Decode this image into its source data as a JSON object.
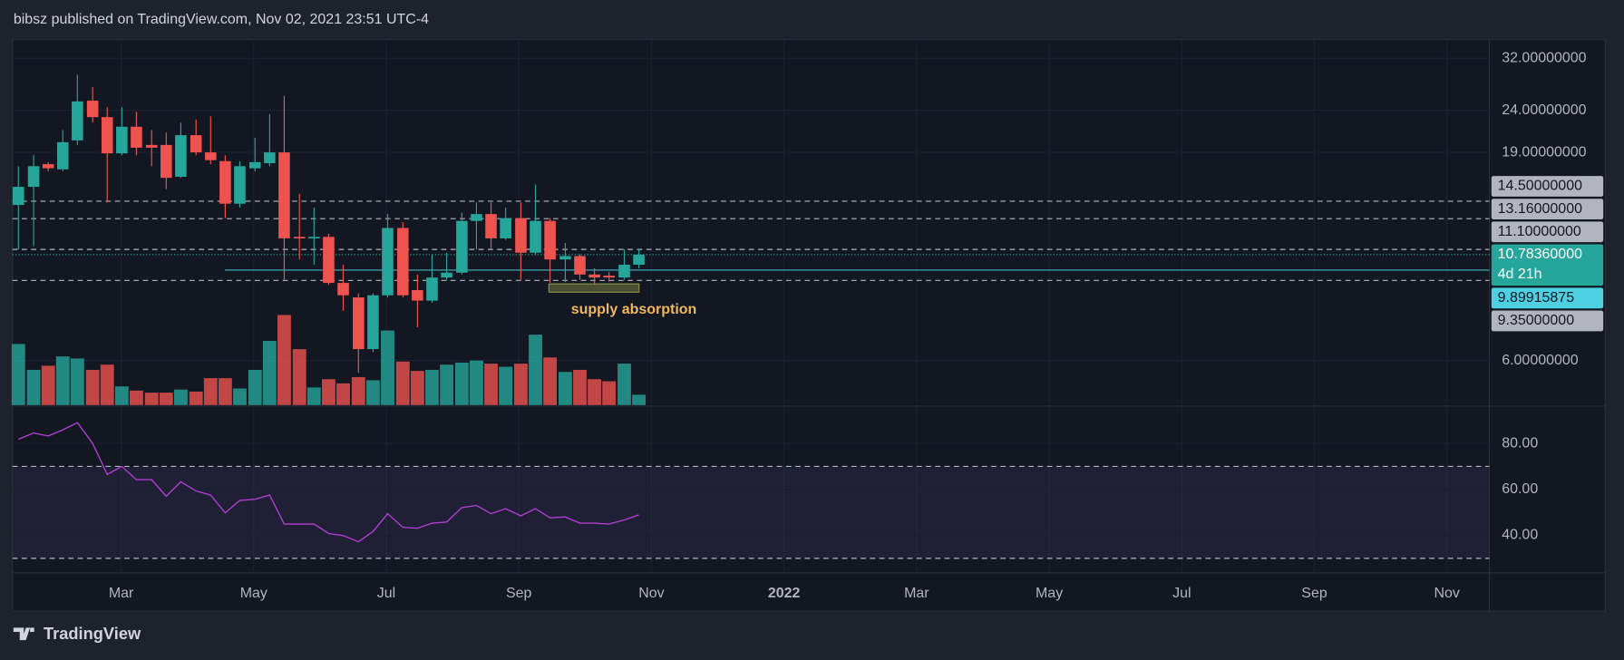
{
  "header": {
    "text": "bibsz published on TradingView.com, Nov 02, 2021 23:51 UTC-4"
  },
  "footer": {
    "brand": "TradingView"
  },
  "chart_data": {
    "type": "candlestick",
    "log_scale": true,
    "grid": true,
    "up_color": "#26a69a",
    "down_color": "#ef5350",
    "xlim": [
      0.36,
      22.64
    ],
    "xticks": [
      {
        "value": 2,
        "label": "Mar"
      },
      {
        "value": 4,
        "label": "May"
      },
      {
        "value": 6,
        "label": "Jul"
      },
      {
        "value": 8,
        "label": "Sep"
      },
      {
        "value": 10,
        "label": "Nov"
      },
      {
        "value": 12,
        "label": "2022"
      },
      {
        "value": 14,
        "label": "Mar"
      },
      {
        "value": 16,
        "label": "May"
      },
      {
        "value": 18,
        "label": "Jul"
      },
      {
        "value": 20,
        "label": "Sep"
      },
      {
        "value": 22,
        "label": "Nov"
      }
    ],
    "ylim": [
      4.66,
      35.5
    ],
    "yticks": [
      {
        "value": 32,
        "label": "32.00000000"
      },
      {
        "value": 24,
        "label": "24.00000000"
      },
      {
        "value": 19,
        "label": "19.00000000"
      },
      {
        "value": 6,
        "label": "6.00000000"
      }
    ],
    "x": [
      0.45,
      0.68,
      0.9,
      1.12,
      1.34,
      1.57,
      1.79,
      2.01,
      2.23,
      2.46,
      2.68,
      2.9,
      3.13,
      3.35,
      3.57,
      3.79,
      4.02,
      4.24,
      4.46,
      4.69,
      4.91,
      5.13,
      5.35,
      5.58,
      5.8,
      6.02,
      6.25,
      6.47,
      6.69,
      6.91,
      7.14,
      7.36,
      7.58,
      7.8,
      8.03,
      8.25,
      8.47,
      8.7,
      8.92,
      9.14,
      9.36,
      9.59,
      9.81
    ],
    "open": [
      14.2,
      15.7,
      17.8,
      17.3,
      20.3,
      25.3,
      23.1,
      18.9,
      21.9,
      19.8,
      19.8,
      16.6,
      20.9,
      19.0,
      18.1,
      14.3,
      17.4,
      17.9,
      19.0,
      11.9,
      11.8,
      11.9,
      9.22,
      8.51,
      6.39,
      8.61,
      12.5,
      8.86,
      8.36,
      9.5,
      9.76,
      13.0,
      13.5,
      11.8,
      13.2,
      10.9,
      13.0,
      10.5,
      10.7,
      9.66,
      9.6,
      9.5,
      10.2
    ],
    "high": [
      17.6,
      18.7,
      18.0,
      21.5,
      29.2,
      27.3,
      24.4,
      24.4,
      23.8,
      21.5,
      21.2,
      22.4,
      22.8,
      23.2,
      18.7,
      18.1,
      20.6,
      23.5,
      26.0,
      15.1,
      14.0,
      12.1,
      10.2,
      8.7,
      8.7,
      13.5,
      12.9,
      9.66,
      10.8,
      10.9,
      13.6,
      14.4,
      14.4,
      14.0,
      14.4,
      15.9,
      13.2,
      11.5,
      10.8,
      10.0,
      9.8,
      11.1,
      11.1
    ],
    "low": [
      11.1,
      11.3,
      17.1,
      17.1,
      19.8,
      22.4,
      14.4,
      18.7,
      18.7,
      17.6,
      15.5,
      16.5,
      18.7,
      17.8,
      13.2,
      14.0,
      17.1,
      17.6,
      9.38,
      10.5,
      10.2,
      9.12,
      7.9,
      5.6,
      6.28,
      8.51,
      8.51,
      7.21,
      8.27,
      9.38,
      9.66,
      11.1,
      11.1,
      11.7,
      9.38,
      10.8,
      9.22,
      9.27,
      9.38,
      9.12,
      9.27,
      9.38,
      10.0
    ],
    "close": [
      15.7,
      17.6,
      17.4,
      20.1,
      25.2,
      23.1,
      18.9,
      21.9,
      19.5,
      19.5,
      16.5,
      20.9,
      19.0,
      18.2,
      14.3,
      17.6,
      18.0,
      19.0,
      11.8,
      11.8,
      11.9,
      9.22,
      8.61,
      6.39,
      8.61,
      12.5,
      8.61,
      8.36,
      9.5,
      9.76,
      13.0,
      13.5,
      11.8,
      13.2,
      10.9,
      13.0,
      10.5,
      10.7,
      9.66,
      9.5,
      9.5,
      10.2,
      10.78
    ],
    "volume": [
      59,
      34,
      38,
      47,
      45,
      34,
      39,
      18,
      14,
      12,
      12,
      15,
      13,
      26,
      26,
      16,
      34,
      62,
      87,
      54,
      17,
      25,
      21,
      27,
      24,
      72,
      42,
      33,
      34,
      39,
      41,
      43,
      40,
      37,
      40,
      68,
      46,
      32,
      34,
      25,
      23,
      40,
      10
    ],
    "price_lines": [
      {
        "value": 14.5,
        "label": "14.50000000",
        "style": "dashed",
        "color": "#b2b5be"
      },
      {
        "value": 13.16,
        "label": "13.16000000",
        "style": "dashed",
        "color": "#b2b5be"
      },
      {
        "value": 11.1,
        "label": "11.10000000",
        "style": "dashed",
        "color": "#b2b5be"
      },
      {
        "value": 9.89915875,
        "label": "9.89915875",
        "style": "solid",
        "color": "#4dd0e1"
      },
      {
        "value": 9.35,
        "label": "9.35000000",
        "style": "dashed",
        "color": "#b2b5be"
      }
    ],
    "last_price": {
      "value": 10.7836,
      "label": "10.78360000",
      "countdown": "4d 21h",
      "color": "#26a69a"
    },
    "annotation": {
      "text": "supply absorption",
      "color": "#f0b860"
    },
    "rsi": {
      "color": "#b03fd0",
      "values": [
        81.8,
        84.5,
        83.2,
        85.9,
        89.0,
        80.0,
        66.5,
        70.0,
        64.2,
        64.2,
        57.0,
        63.3,
        59.3,
        57.5,
        49.8,
        55.2,
        55.7,
        57.5,
        44.9,
        44.9,
        44.9,
        40.8,
        39.9,
        37.2,
        41.7,
        49.4,
        43.5,
        43.1,
        45.3,
        45.8,
        52.1,
        53.0,
        49.4,
        51.6,
        48.5,
        51.6,
        47.6,
        48.0,
        45.3,
        45.3,
        44.9,
        46.7,
        48.9
      ],
      "ylim": [
        23.7,
        96.2
      ],
      "yticks": [
        {
          "value": 80,
          "label": "80.00"
        },
        {
          "value": 60,
          "label": "60.00"
        },
        {
          "value": 40,
          "label": "40.00"
        }
      ],
      "bands": [
        70,
        30
      ]
    }
  }
}
